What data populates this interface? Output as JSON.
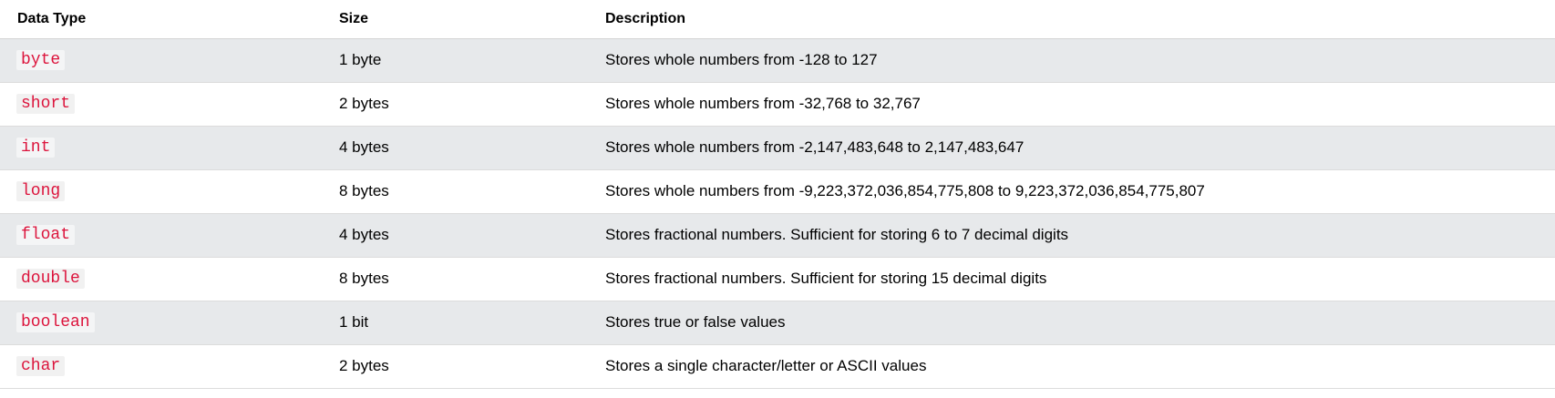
{
  "table": {
    "headers": [
      "Data Type",
      "Size",
      "Description"
    ],
    "rows": [
      {
        "type": "byte",
        "size": "1 byte",
        "description": "Stores whole numbers from -128 to 127"
      },
      {
        "type": "short",
        "size": "2 bytes",
        "description": "Stores whole numbers from -32,768 to 32,767"
      },
      {
        "type": "int",
        "size": "4 bytes",
        "description": "Stores whole numbers from -2,147,483,648 to 2,147,483,647"
      },
      {
        "type": "long",
        "size": "8 bytes",
        "description": "Stores whole numbers from -9,223,372,036,854,775,808 to 9,223,372,036,854,775,807"
      },
      {
        "type": "float",
        "size": "4 bytes",
        "description": "Stores fractional numbers. Sufficient for storing 6 to 7 decimal digits"
      },
      {
        "type": "double",
        "size": "8 bytes",
        "description": "Stores fractional numbers. Sufficient for storing 15 decimal digits"
      },
      {
        "type": "boolean",
        "size": "1 bit",
        "description": "Stores true or false values"
      },
      {
        "type": "char",
        "size": "2 bytes",
        "description": "Stores a single character/letter or ASCII values"
      }
    ]
  },
  "colors": {
    "code_text": "#dc143c",
    "stripe": "#e7e9eb"
  }
}
